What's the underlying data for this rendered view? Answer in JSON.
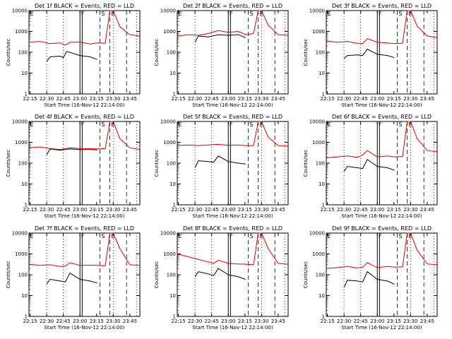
{
  "figure": {
    "xlabel": "Start Time (16-Nov-12 22:14:00)",
    "ylabel": "Counts/sec"
  },
  "chart_data": [
    {
      "type": "line",
      "title": "Det 1f BLACK = Events, RED = LLD",
      "xlabel": "Start Time (16-Nov-12 22:14:00)",
      "ylabel": "Counts/sec",
      "xlim": [
        22.233,
        23.9
      ],
      "ylim": [
        1,
        10000
      ],
      "yscale": "log",
      "xticks": [
        "22:15",
        "22:30",
        "22:45",
        "23:00",
        "23:15",
        "23:30",
        "23:45"
      ],
      "yticks": [
        "1",
        "10",
        "100",
        "1000",
        "10000"
      ],
      "markers": [
        "E",
        "F",
        "S",
        "E"
      ],
      "series": [
        {
          "name": "LLD",
          "color": "#dd0000",
          "x": [
            22.23,
            22.4,
            22.55,
            22.7,
            22.75,
            22.78,
            22.85,
            23.0,
            23.15,
            23.26,
            23.38,
            23.45,
            23.5,
            23.6,
            23.75,
            23.9
          ],
          "y": [
            300,
            330,
            260,
            280,
            240,
            220,
            300,
            310,
            250,
            280,
            270,
            10000,
            10000,
            1700,
            700,
            600
          ]
        },
        {
          "name": "Events",
          "color": "#000000",
          "x": [
            22.5,
            22.55,
            22.7,
            22.75,
            22.8,
            23.0,
            23.15,
            23.26
          ],
          "y": [
            35,
            60,
            65,
            55,
            110,
            70,
            60,
            45
          ]
        }
      ]
    },
    {
      "type": "line",
      "title": "Det 2f BLACK = Events, RED = LLD",
      "xlabel": "Start Time (16-Nov-12 22:14:00)",
      "ylabel": "Counts/sec",
      "xlim": [
        22.233,
        23.9
      ],
      "ylim": [
        1,
        10000
      ],
      "yscale": "log",
      "xticks": [
        "22:15",
        "22:30",
        "22:45",
        "23:00",
        "23:15",
        "23:30",
        "23:45"
      ],
      "yticks": [
        "1",
        "10",
        "100",
        "1000",
        "10000"
      ],
      "markers": [
        "E",
        "F",
        "S",
        "E"
      ],
      "series": [
        {
          "name": "LLD",
          "color": "#dd0000",
          "x": [
            22.23,
            22.4,
            22.55,
            22.7,
            22.85,
            23.0,
            23.15,
            23.26,
            23.38,
            23.45,
            23.5,
            23.6,
            23.75,
            23.9
          ],
          "y": [
            600,
            700,
            650,
            800,
            1100,
            900,
            1000,
            700,
            800,
            10000,
            10000,
            2000,
            700,
            650
          ]
        },
        {
          "name": "Events",
          "color": "#000000",
          "x": [
            22.5,
            22.55,
            22.7,
            22.85,
            23.0,
            23.15,
            23.26
          ],
          "y": [
            300,
            600,
            550,
            700,
            650,
            700,
            500
          ]
        }
      ]
    },
    {
      "type": "line",
      "title": "Det 3f BLACK = Events, RED = LLD",
      "xlabel": "Start Time (16-Nov-12 22:14:00)",
      "ylabel": "Counts/sec",
      "xlim": [
        22.233,
        23.9
      ],
      "ylim": [
        1,
        10000
      ],
      "yscale": "log",
      "xticks": [
        "22:15",
        "22:30",
        "22:45",
        "23:00",
        "23:15",
        "23:30",
        "23:45"
      ],
      "yticks": [
        "1",
        "10",
        "100",
        "1000",
        "10000"
      ],
      "markers": [
        "E",
        "F",
        "S",
        "E"
      ],
      "series": [
        {
          "name": "LLD",
          "color": "#dd0000",
          "x": [
            22.23,
            22.4,
            22.55,
            22.7,
            22.78,
            22.85,
            23.0,
            23.15,
            23.26,
            23.38,
            23.45,
            23.5,
            23.6,
            23.75,
            23.9
          ],
          "y": [
            350,
            300,
            330,
            270,
            260,
            450,
            300,
            280,
            260,
            270,
            10000,
            10000,
            1800,
            600,
            500
          ]
        },
        {
          "name": "Events",
          "color": "#000000",
          "x": [
            22.5,
            22.55,
            22.7,
            22.78,
            22.85,
            23.0,
            23.15,
            23.26
          ],
          "y": [
            50,
            70,
            75,
            70,
            140,
            80,
            70,
            55
          ]
        }
      ]
    },
    {
      "type": "line",
      "title": "Det 4f BLACK = Events, RED = LLD",
      "xlabel": "Start Time (16-Nov-12 22:14:00)",
      "ylabel": "Counts/sec",
      "xlim": [
        22.233,
        23.9
      ],
      "ylim": [
        1,
        10000
      ],
      "yscale": "log",
      "xticks": [
        "22:15",
        "22:30",
        "22:45",
        "23:00",
        "23:15",
        "23:30",
        "23:45"
      ],
      "yticks": [
        "1",
        "10",
        "100",
        "1000",
        "10000"
      ],
      "markers": [
        "E",
        "F",
        "S",
        "E"
      ],
      "series": [
        {
          "name": "LLD",
          "color": "#dd0000",
          "x": [
            22.23,
            22.4,
            22.55,
            22.7,
            22.85,
            23.0,
            23.15,
            23.26,
            23.38,
            23.45,
            23.5,
            23.6,
            23.75,
            23.9
          ],
          "y": [
            550,
            600,
            500,
            450,
            550,
            500,
            500,
            480,
            500,
            10000,
            10000,
            1500,
            550,
            450
          ]
        },
        {
          "name": "Events",
          "color": "#000000",
          "x": [
            22.5,
            22.55,
            22.7,
            22.85,
            23.0,
            23.15,
            23.26
          ],
          "y": [
            250,
            480,
            420,
            480,
            450,
            450,
            430
          ]
        }
      ]
    },
    {
      "type": "line",
      "title": "Det 5f BLACK = Events, RED = LLD",
      "xlabel": "Start Time (16-Nov-12 22:14:00)",
      "ylabel": "Counts/sec",
      "xlim": [
        22.233,
        23.9
      ],
      "ylim": [
        1,
        10000
      ],
      "yscale": "log",
      "xticks": [
        "22:15",
        "22:30",
        "22:45",
        "23:00",
        "23:15",
        "23:30",
        "23:45"
      ],
      "yticks": [
        "1",
        "10",
        "100",
        "1000",
        "10000"
      ],
      "markers": [
        "E",
        "F",
        "S",
        "E"
      ],
      "series": [
        {
          "name": "LLD",
          "color": "#dd0000",
          "x": [
            22.23,
            22.4,
            22.55,
            22.7,
            22.85,
            23.0,
            23.15,
            23.26,
            23.38,
            23.45,
            23.5,
            23.6,
            23.75,
            23.9
          ],
          "y": [
            700,
            750,
            700,
            750,
            800,
            720,
            750,
            700,
            700,
            10000,
            10000,
            1800,
            700,
            650
          ]
        },
        {
          "name": "Events",
          "color": "#000000",
          "x": [
            22.5,
            22.55,
            22.7,
            22.78,
            22.85,
            23.0,
            23.15,
            23.26
          ],
          "y": [
            60,
            130,
            120,
            110,
            220,
            120,
            100,
            90
          ]
        }
      ]
    },
    {
      "type": "line",
      "title": "Det 6f BLACK = Events, RED = LLD",
      "xlabel": "Start Time (16-Nov-12 22:14:00)",
      "ylabel": "Counts/sec",
      "xlim": [
        22.233,
        23.9
      ],
      "ylim": [
        1,
        10000
      ],
      "yscale": "log",
      "xticks": [
        "22:15",
        "22:30",
        "22:45",
        "23:00",
        "23:15",
        "23:30",
        "23:45"
      ],
      "yticks": [
        "1",
        "10",
        "100",
        "1000",
        "10000"
      ],
      "markers": [
        "E",
        "F",
        "S",
        "E"
      ],
      "series": [
        {
          "name": "LLD",
          "color": "#dd0000",
          "x": [
            22.23,
            22.4,
            22.55,
            22.7,
            22.78,
            22.85,
            23.0,
            23.15,
            23.26,
            23.38,
            23.45,
            23.5,
            23.6,
            23.75,
            23.9
          ],
          "y": [
            180,
            200,
            220,
            190,
            250,
            400,
            200,
            220,
            200,
            210,
            10000,
            10000,
            1500,
            400,
            350
          ]
        },
        {
          "name": "Events",
          "color": "#000000",
          "x": [
            22.5,
            22.55,
            22.7,
            22.78,
            22.85,
            23.0,
            23.15,
            23.26
          ],
          "y": [
            40,
            70,
            60,
            55,
            150,
            70,
            60,
            45
          ]
        }
      ]
    },
    {
      "type": "line",
      "title": "Det 7f BLACK = Events, RED = LLD",
      "xlabel": "Start Time (16-Nov-12 22:14:00)",
      "ylabel": "Counts/sec",
      "xlim": [
        22.233,
        23.9
      ],
      "ylim": [
        1,
        10000
      ],
      "yscale": "log",
      "xticks": [
        "22:15",
        "22:30",
        "22:45",
        "23:00",
        "23:15",
        "23:30",
        "23:45"
      ],
      "yticks": [
        "1",
        "10",
        "100",
        "1000",
        "10000"
      ],
      "markers": [
        "E",
        "F",
        "S",
        "E"
      ],
      "series": [
        {
          "name": "LLD",
          "color": "#dd0000",
          "x": [
            22.23,
            22.4,
            22.55,
            22.7,
            22.78,
            22.85,
            23.0,
            23.15,
            23.26,
            23.38,
            23.45,
            23.5,
            23.6,
            23.75,
            23.9
          ],
          "y": [
            320,
            280,
            300,
            250,
            260,
            380,
            280,
            290,
            280,
            270,
            10000,
            10000,
            1800,
            300,
            280
          ]
        },
        {
          "name": "Events",
          "color": "#000000",
          "x": [
            22.5,
            22.55,
            22.7,
            22.78,
            22.85,
            23.0,
            23.15,
            23.26
          ],
          "y": [
            35,
            60,
            50,
            45,
            120,
            60,
            50,
            40
          ]
        }
      ]
    },
    {
      "type": "line",
      "title": "Det 8f BLACK = Events, RED = LLD",
      "xlabel": "Start Time (16-Nov-12 22:14:00)",
      "ylabel": "Counts/sec",
      "xlim": [
        22.233,
        23.9
      ],
      "ylim": [
        1,
        10000
      ],
      "yscale": "log",
      "xticks": [
        "22:15",
        "22:30",
        "22:45",
        "23:00",
        "23:15",
        "23:30",
        "23:45"
      ],
      "yticks": [
        "1",
        "10",
        "100",
        "1000",
        "10000"
      ],
      "markers": [
        "E",
        "F",
        "S",
        "E"
      ],
      "series": [
        {
          "name": "LLD",
          "color": "#dd0000",
          "x": [
            22.23,
            22.35,
            22.5,
            22.65,
            22.78,
            22.85,
            23.0,
            23.15,
            23.26,
            23.38,
            23.45,
            23.5,
            23.6,
            23.75,
            23.9
          ],
          "y": [
            1000,
            800,
            600,
            450,
            350,
            500,
            350,
            330,
            320,
            300,
            10000,
            10000,
            1800,
            350,
            320
          ]
        },
        {
          "name": "Events",
          "color": "#000000",
          "x": [
            22.5,
            22.55,
            22.7,
            22.78,
            22.85,
            23.0,
            23.15,
            23.26
          ],
          "y": [
            80,
            140,
            110,
            90,
            200,
            100,
            80,
            60
          ]
        }
      ]
    },
    {
      "type": "line",
      "title": "Det 9f BLACK = Events, RED = LLD",
      "xlabel": "Start Time (16-Nov-12 22:14:00)",
      "ylabel": "Counts/sec",
      "xlim": [
        22.233,
        23.9
      ],
      "ylim": [
        1,
        10000
      ],
      "yscale": "log",
      "xticks": [
        "22:15",
        "22:30",
        "22:45",
        "23:00",
        "23:15",
        "23:30",
        "23:45"
      ],
      "yticks": [
        "1",
        "10",
        "100",
        "1000",
        "10000"
      ],
      "markers": [
        "E",
        "F",
        "S",
        "E"
      ],
      "series": [
        {
          "name": "LLD",
          "color": "#dd0000",
          "x": [
            22.23,
            22.4,
            22.55,
            22.7,
            22.78,
            22.85,
            23.0,
            23.15,
            23.26,
            23.38,
            23.45,
            23.5,
            23.6,
            23.75,
            23.9
          ],
          "y": [
            200,
            220,
            250,
            210,
            230,
            380,
            220,
            250,
            230,
            240,
            10000,
            10000,
            1500,
            330,
            300
          ]
        },
        {
          "name": "Events",
          "color": "#000000",
          "x": [
            22.5,
            22.55,
            22.7,
            22.78,
            22.85,
            23.0,
            23.15,
            23.26
          ],
          "y": [
            25,
            55,
            50,
            45,
            140,
            60,
            50,
            35
          ]
        }
      ]
    }
  ]
}
